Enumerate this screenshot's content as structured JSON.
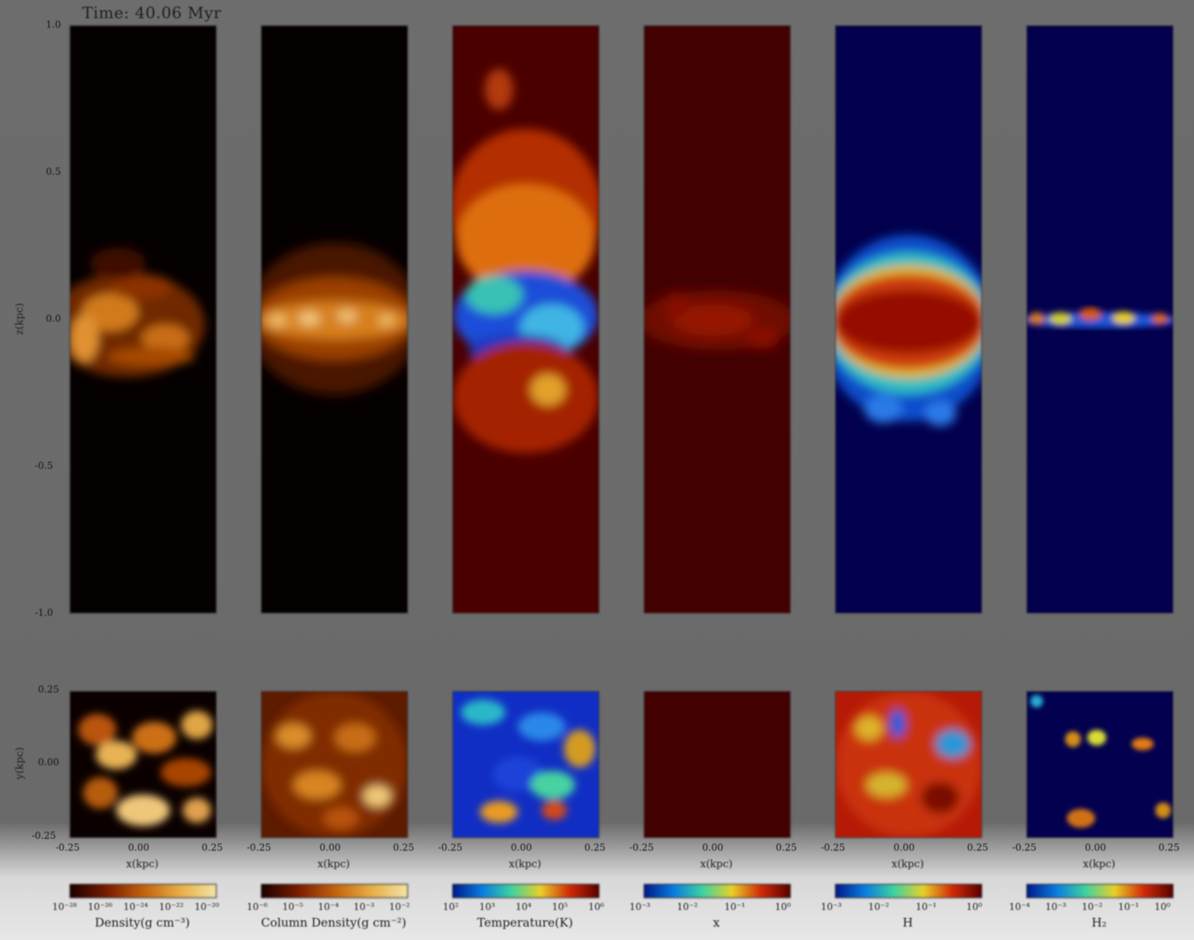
{
  "figure": {
    "time_label": "Time: 40.06 Myr",
    "top_y_label": "z(kpc)",
    "bottom_y_label": "y(kpc)",
    "top_y_ticks": [
      "1.0",
      "0.5",
      "0.0",
      "-0.5",
      "-1.0"
    ],
    "bottom_y_ticks": [
      "0.25",
      "0.00",
      "-0.25"
    ],
    "x_ticks": [
      "-0.25",
      "0.00",
      "0.25"
    ],
    "x_axis_label": "x(kpc)",
    "panels": [
      {
        "name": "density",
        "colorbar_label": "Density(g cm⁻³)",
        "colorbar_ticks": [
          "10⁻²⁸",
          "10⁻²⁶",
          "10⁻²⁴",
          "10⁻²²",
          "10⁻²⁰"
        ],
        "colors": [
          "#1a0000",
          "#7a1d00",
          "#c2610d",
          "#e6ad44",
          "#f4e3a5"
        ]
      },
      {
        "name": "column-density",
        "colorbar_label": "Column Density(g cm⁻²)",
        "colorbar_ticks": [
          "10⁻⁶",
          "10⁻⁵",
          "10⁻⁴",
          "10⁻³",
          "10⁻²"
        ],
        "colors": [
          "#1a0000",
          "#7a1d00",
          "#c2610d",
          "#e6ad44",
          "#f4e3a5"
        ]
      },
      {
        "name": "temperature",
        "colorbar_label": "Temperature(K)",
        "colorbar_ticks": [
          "10²",
          "10³",
          "10⁴",
          "10⁵",
          "10⁶"
        ],
        "colors": [
          "#001a8a",
          "#0a7be0",
          "#3fd1a0",
          "#e8d02a",
          "#d12a08",
          "#5a0000"
        ]
      },
      {
        "name": "x-ionization",
        "colorbar_label": "x",
        "colorbar_ticks": [
          "10⁻³",
          "10⁻²",
          "10⁻¹",
          "10⁰"
        ],
        "colors": [
          "#001a8a",
          "#0a7be0",
          "#3fd1a0",
          "#e8d02a",
          "#d12a08",
          "#5a0000"
        ]
      },
      {
        "name": "hydrogen",
        "colorbar_label": "H",
        "colorbar_ticks": [
          "10⁻³",
          "10⁻²",
          "10⁻¹",
          "10⁰"
        ],
        "colors": [
          "#001a8a",
          "#0a7be0",
          "#3fd1a0",
          "#e8d02a",
          "#d12a08",
          "#5a0000"
        ]
      },
      {
        "name": "molecular-hydrogen",
        "colorbar_label": "H₂",
        "colorbar_ticks": [
          "10⁻⁴",
          "10⁻³",
          "10⁻²",
          "10⁻¹",
          "10⁰"
        ],
        "colors": [
          "#001a8a",
          "#0a7be0",
          "#3fd1a0",
          "#e8d02a",
          "#d12a08",
          "#5a0000"
        ]
      }
    ]
  }
}
